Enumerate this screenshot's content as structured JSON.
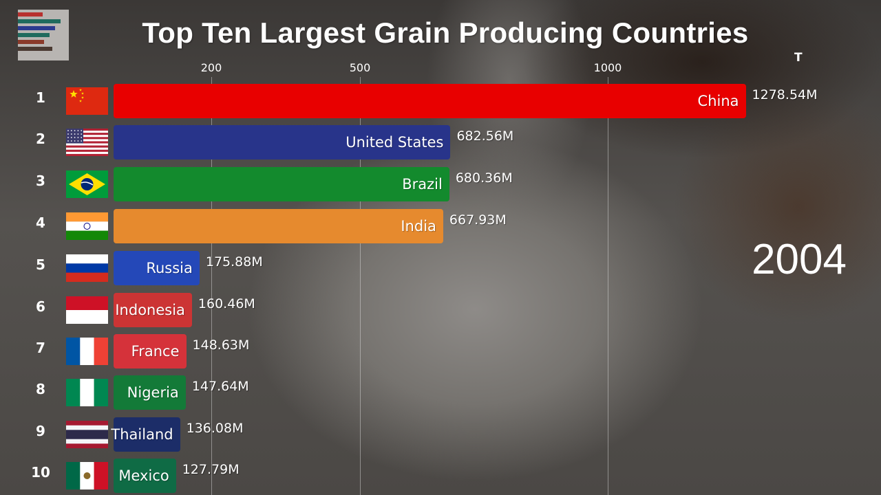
{
  "chart_data": {
    "type": "bar",
    "title": "Top Ten Largest Grain Producing Countries",
    "unit_label": "T",
    "year": "2004",
    "axis_ticks": [
      {
        "label": "200",
        "value": 200
      },
      {
        "label": "500",
        "value": 500
      },
      {
        "label": "1000",
        "value": 1000
      }
    ],
    "series": [
      {
        "rank": "1",
        "name": "China",
        "value": 1278.54,
        "value_label": "1278.54M",
        "color": "#e80000",
        "flag": "china"
      },
      {
        "rank": "2",
        "name": "United States",
        "value": 682.56,
        "value_label": "682.56M",
        "color": "#28348a",
        "flag": "usa"
      },
      {
        "rank": "3",
        "name": "Brazil",
        "value": 680.36,
        "value_label": "680.36M",
        "color": "#138a2d",
        "flag": "brazil"
      },
      {
        "rank": "4",
        "name": "India",
        "value": 667.93,
        "value_label": "667.93M",
        "color": "#e68a2e",
        "flag": "india"
      },
      {
        "rank": "5",
        "name": "Russia",
        "value": 175.88,
        "value_label": "175.88M",
        "color": "#2448b8",
        "flag": "russia"
      },
      {
        "rank": "6",
        "name": "Indonesia",
        "value": 160.46,
        "value_label": "160.46M",
        "color": "#cc3434",
        "flag": "indonesia"
      },
      {
        "rank": "7",
        "name": "France",
        "value": 148.63,
        "value_label": "148.63M",
        "color": "#d5323a",
        "flag": "france"
      },
      {
        "rank": "8",
        "name": "Nigeria",
        "value": 147.64,
        "value_label": "147.64M",
        "color": "#137a38",
        "flag": "nigeria"
      },
      {
        "rank": "9",
        "name": "Thailand",
        "value": 136.08,
        "value_label": "136.08M",
        "color": "#1c2d68",
        "flag": "thailand"
      },
      {
        "rank": "10",
        "name": "Mexico",
        "value": 127.79,
        "value_label": "127.79M",
        "color": "#0f6b45",
        "flag": "mexico"
      }
    ]
  }
}
